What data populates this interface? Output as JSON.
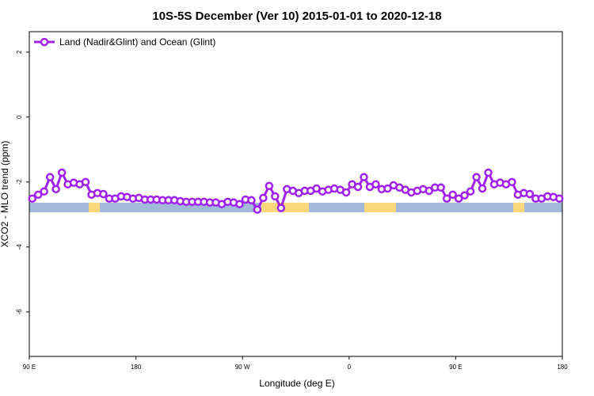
{
  "chart_data": {
    "type": "line",
    "title": "10S-5S December (Ver 10)   2015-01-01 to 2020-12-18",
    "x_label": "Longitude (deg E)",
    "y_label": "XCO2 - MLO trend (ppm)",
    "xlim": [
      90,
      540
    ],
    "xticks": [
      {
        "value": 90,
        "label": "90 E"
      },
      {
        "value": 180,
        "label": "180"
      },
      {
        "value": 270,
        "label": "90 W"
      },
      {
        "value": 360,
        "label": "0"
      },
      {
        "value": 450,
        "label": "90 E"
      },
      {
        "value": 540,
        "label": "180"
      }
    ],
    "ylim": [
      -7.37,
      2.63
    ],
    "yticks": [
      2,
      0,
      -2,
      -4,
      -6
    ],
    "legend": "top-left",
    "x": [
      92.5,
      97.5,
      102.5,
      107.5,
      112.5,
      117.5,
      122.5,
      127.5,
      132.5,
      137.5,
      142.5,
      147.5,
      152.5,
      157.5,
      162.5,
      167.5,
      172.5,
      177.5,
      182.5,
      187.5,
      192.5,
      197.5,
      202.5,
      207.5,
      212.5,
      217.5,
      222.5,
      227.5,
      232.5,
      237.5,
      242.5,
      247.5,
      252.5,
      257.5,
      262.5,
      267.5,
      272.5,
      277.5,
      282.5,
      287.5,
      292.5,
      297.5,
      302.5,
      307.5,
      312.5,
      317.5,
      322.5,
      327.5,
      332.5,
      337.5,
      342.5,
      347.5,
      352.5,
      357.5,
      362.5,
      367.5,
      372.5,
      377.5,
      382.5,
      387.5,
      392.5,
      397.5,
      402.5,
      407.5,
      412.5,
      417.5,
      422.5,
      427.5,
      432.5,
      437.5,
      442.5,
      447.5,
      452.5,
      457.5,
      462.5,
      467.5,
      472.5,
      477.5,
      482.5,
      487.5,
      492.5,
      497.5,
      502.5,
      507.5,
      512.5,
      517.5,
      522.5,
      527.5,
      532.5,
      537.5
    ],
    "series": [
      {
        "name": "Land (Nadir&Glint) and Ocean (Glint)",
        "color": "#a020f0",
        "values": [
          -2.51,
          -2.39,
          -2.29,
          -1.85,
          -2.22,
          -1.71,
          -2.07,
          -2.02,
          -2.07,
          -2.0,
          -2.39,
          -2.34,
          -2.37,
          -2.51,
          -2.51,
          -2.44,
          -2.46,
          -2.51,
          -2.49,
          -2.54,
          -2.54,
          -2.54,
          -2.56,
          -2.56,
          -2.56,
          -2.59,
          -2.61,
          -2.61,
          -2.61,
          -2.61,
          -2.63,
          -2.63,
          -2.68,
          -2.61,
          -2.63,
          -2.68,
          -2.54,
          -2.56,
          -2.85,
          -2.49,
          -2.12,
          -2.44,
          -2.8,
          -2.22,
          -2.27,
          -2.34,
          -2.27,
          -2.27,
          -2.2,
          -2.29,
          -2.24,
          -2.2,
          -2.24,
          -2.32,
          -2.07,
          -2.15,
          -1.85,
          -2.15,
          -2.07,
          -2.22,
          -2.2,
          -2.1,
          -2.17,
          -2.24,
          -2.32,
          -2.27,
          -2.22,
          -2.27,
          -2.17,
          -2.17,
          -2.51,
          -2.39,
          -2.51,
          -2.41,
          -2.29,
          -1.85,
          -2.2,
          -1.71,
          -2.07,
          -2.02,
          -2.07,
          -2.0,
          -2.39,
          -2.34,
          -2.37,
          -2.51,
          -2.51,
          -2.44,
          -2.46,
          -2.51
        ]
      }
    ]
  }
}
